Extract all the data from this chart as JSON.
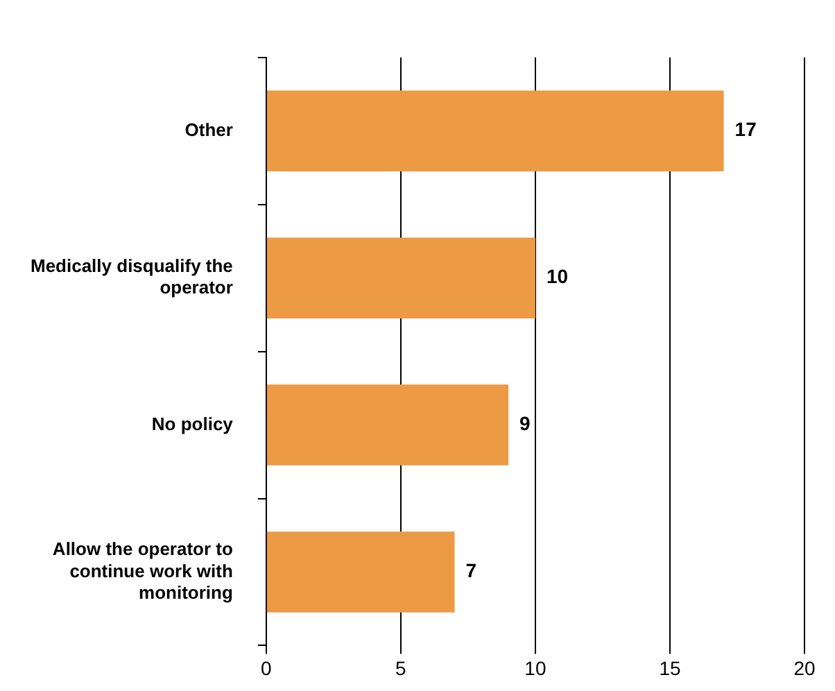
{
  "chart_data": {
    "type": "bar",
    "orientation": "horizontal",
    "categories": [
      "Other",
      "Medically disqualify the operator",
      "No policy",
      "Allow the operator to continue work with monitoring"
    ],
    "values": [
      17,
      10,
      9,
      7
    ],
    "color": "#ed9a45",
    "xlim": [
      0,
      20
    ],
    "xticks": [
      0,
      5,
      10,
      15,
      20
    ],
    "grid": "x",
    "data_labels": true
  }
}
